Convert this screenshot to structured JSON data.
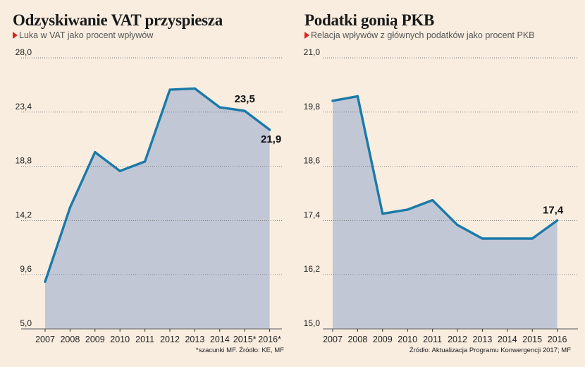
{
  "chart_data": [
    {
      "type": "area",
      "title": "Odzyskiwanie VAT przyspiesza",
      "subtitle": "Luka w VAT jako procent wpływów",
      "footnote": "*szacunki MF. Źródło: KE, MF",
      "categories": [
        "2007",
        "2008",
        "2009",
        "2010",
        "2011",
        "2012",
        "2013",
        "2014",
        "2015*",
        "2016*"
      ],
      "series": [
        {
          "values": [
            9.0,
            15.3,
            20.0,
            18.4,
            19.2,
            25.3,
            25.4,
            23.8,
            23.5,
            21.9
          ]
        }
      ],
      "ylim": [
        5.0,
        28.0
      ],
      "yticks": [
        "28,0",
        "23,4",
        "18,8",
        "14,2",
        "9,6",
        "5,0"
      ],
      "data_labels": [
        {
          "index": 8,
          "text": "23,5"
        },
        {
          "index": 9,
          "text": "21,9"
        }
      ],
      "grid": true,
      "colors": {
        "line": "#1a7aa8",
        "fill": "#c2c7d6",
        "grid": "#777777",
        "marker": "#d9231d"
      }
    },
    {
      "type": "area",
      "title": "Podatki gonią PKB",
      "subtitle": "Relacja wpływów z głównych podatków jako procent PKB",
      "footnote": "Źródło: Aktualizacja Programu Konwergencji 2017; MF",
      "categories": [
        "2007",
        "2008",
        "2009",
        "2010",
        "2011",
        "2012",
        "2013",
        "2014",
        "2015",
        "2016"
      ],
      "series": [
        {
          "values": [
            20.05,
            20.15,
            17.55,
            17.64,
            17.85,
            17.3,
            17.0,
            17.0,
            17.0,
            17.4
          ]
        }
      ],
      "ylim": [
        15.0,
        21.0
      ],
      "yticks": [
        "21,0",
        "19,8",
        "18,6",
        "17,4",
        "16,2",
        "15,0"
      ],
      "data_labels": [
        {
          "index": 9,
          "text": "17,4"
        }
      ],
      "grid": true,
      "colors": {
        "line": "#1a7aa8",
        "fill": "#c2c7d6",
        "grid": "#777777",
        "marker": "#d9231d"
      }
    }
  ]
}
